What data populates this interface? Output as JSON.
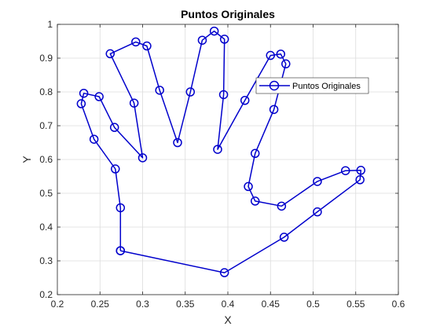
{
  "chart_data": {
    "type": "line",
    "title": "Puntos Originales",
    "xlabel": "X",
    "ylabel": "Y",
    "xlim": [
      0.2,
      0.6
    ],
    "ylim": [
      0.2,
      1.0
    ],
    "xticks": [
      "0.2",
      "0.25",
      "0.3",
      "0.35",
      "0.4",
      "0.45",
      "0.5",
      "0.55",
      "0.6"
    ],
    "yticks": [
      "0.2",
      "0.3",
      "0.4",
      "0.5",
      "0.6",
      "0.7",
      "0.8",
      "0.9",
      "1"
    ],
    "grid": true,
    "legend": "top-right",
    "series": [
      {
        "name": "Puntos Originales",
        "color": "#0000cc",
        "marker": "circle",
        "x": [
          0.274,
          0.274,
          0.268,
          0.243,
          0.228,
          0.231,
          0.249,
          0.267,
          0.3,
          0.29,
          0.262,
          0.292,
          0.305,
          0.32,
          0.341,
          0.356,
          0.37,
          0.384,
          0.396,
          0.395,
          0.388,
          0.42,
          0.45,
          0.462,
          0.468,
          0.454,
          0.432,
          0.424,
          0.432,
          0.463,
          0.505,
          0.538,
          0.556,
          0.555,
          0.505,
          0.466,
          0.396,
          0.274
        ],
        "y": [
          0.33,
          0.457,
          0.572,
          0.66,
          0.765,
          0.796,
          0.786,
          0.695,
          0.605,
          0.767,
          0.913,
          0.948,
          0.936,
          0.805,
          0.65,
          0.8,
          0.953,
          0.98,
          0.956,
          0.792,
          0.63,
          0.775,
          0.908,
          0.912,
          0.883,
          0.748,
          0.618,
          0.52,
          0.477,
          0.462,
          0.535,
          0.567,
          0.568,
          0.54,
          0.445,
          0.37,
          0.265,
          0.33
        ]
      }
    ]
  }
}
